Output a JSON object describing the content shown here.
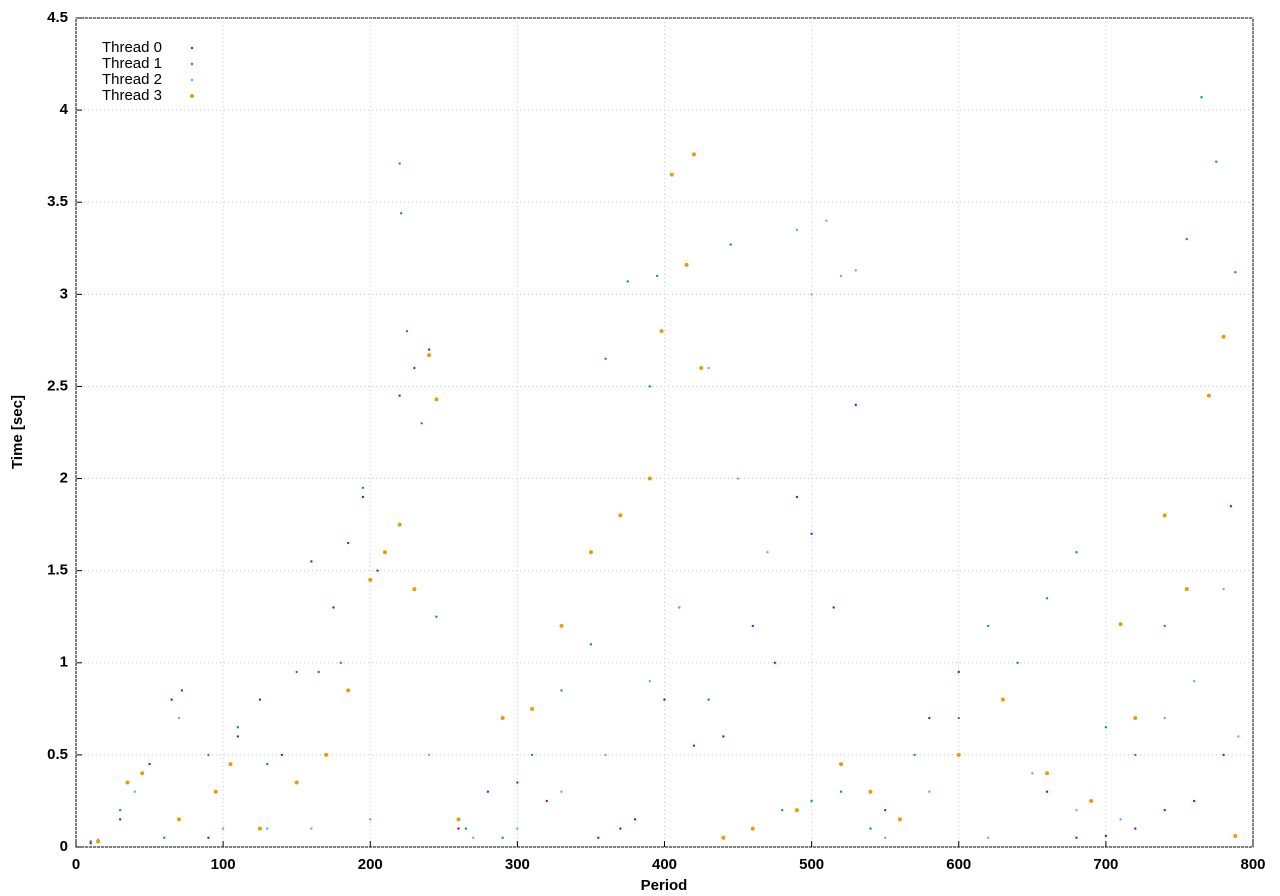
{
  "chart_data": {
    "type": "scatter",
    "x_label": "Period",
    "y_label": "Time [sec]",
    "xlim": [
      0,
      800
    ],
    "ylim": [
      0,
      4.5
    ],
    "xticks": [
      0,
      100,
      200,
      300,
      400,
      500,
      600,
      700,
      800
    ],
    "yticks": [
      0,
      0.5,
      1,
      1.5,
      2,
      2.5,
      3,
      3.5,
      4,
      4.5
    ],
    "grid": true,
    "legend": "upper left",
    "series": [
      {
        "name": "Thread 0",
        "color": "#9400d3",
        "x": [
          10,
          30,
          50,
          65,
          72,
          90,
          110,
          125,
          140,
          160,
          175,
          185,
          195,
          205,
          220,
          230,
          240,
          260,
          280,
          300,
          320,
          355,
          370,
          380,
          400,
          420,
          440,
          460,
          475,
          490,
          500,
          515,
          530,
          550,
          580,
          600,
          630,
          660,
          680,
          700,
          720,
          740,
          760,
          780,
          785
        ],
        "values": [
          0.02,
          0.15,
          0.45,
          0.8,
          0.85,
          0.05,
          0.6,
          0.8,
          0.5,
          1.55,
          1.3,
          1.65,
          1.9,
          1.5,
          2.45,
          2.6,
          2.7,
          0.1,
          0.3,
          0.35,
          0.25,
          0.05,
          0.1,
          0.15,
          0.8,
          0.55,
          0.6,
          1.2,
          1.0,
          1.9,
          1.7,
          1.3,
          2.4,
          0.2,
          0.7,
          0.95,
          0.8,
          0.3,
          0.05,
          0.06,
          0.1,
          0.2,
          0.25,
          0.5,
          1.85
        ]
      },
      {
        "name": "Thread 1",
        "color": "#009e73",
        "x": [
          10,
          30,
          60,
          90,
          110,
          130,
          150,
          165,
          180,
          195,
          210,
          220,
          221,
          225,
          235,
          245,
          265,
          290,
          310,
          330,
          350,
          360,
          375,
          390,
          395,
          410,
          430,
          445,
          460,
          480,
          500,
          520,
          540,
          570,
          600,
          620,
          640,
          660,
          680,
          700,
          720,
          740,
          755,
          765,
          775,
          788
        ],
        "values": [
          0.03,
          0.2,
          0.05,
          0.5,
          0.65,
          0.45,
          0.95,
          0.95,
          1.0,
          1.95,
          1.6,
          3.71,
          3.44,
          2.8,
          2.3,
          1.25,
          0.1,
          0.05,
          0.5,
          0.85,
          1.1,
          2.65,
          3.07,
          2.5,
          3.1,
          1.3,
          0.8,
          3.27,
          0.1,
          0.2,
          0.25,
          0.3,
          0.1,
          0.5,
          0.7,
          1.2,
          1.0,
          1.35,
          1.6,
          0.65,
          0.5,
          1.2,
          3.3,
          4.07,
          3.72,
          3.12
        ]
      },
      {
        "name": "Thread 2",
        "color": "#56b4e9",
        "x": [
          15,
          40,
          70,
          100,
          130,
          160,
          200,
          240,
          270,
          300,
          330,
          360,
          390,
          410,
          430,
          450,
          470,
          490,
          500,
          510,
          520,
          530,
          550,
          580,
          620,
          650,
          680,
          710,
          740,
          760,
          780,
          790
        ],
        "values": [
          0.04,
          0.3,
          0.7,
          0.1,
          0.1,
          0.1,
          0.15,
          0.5,
          0.05,
          0.1,
          0.3,
          0.5,
          0.9,
          1.3,
          2.6,
          2.0,
          1.6,
          3.35,
          3.0,
          3.4,
          3.1,
          3.13,
          0.05,
          0.3,
          0.05,
          0.4,
          0.2,
          0.15,
          0.7,
          0.9,
          1.4,
          0.6
        ]
      },
      {
        "name": "Thread 3",
        "color": "#e69f00",
        "x": [
          15,
          35,
          45,
          70,
          95,
          105,
          125,
          150,
          170,
          185,
          200,
          210,
          220,
          230,
          240,
          245,
          260,
          290,
          310,
          330,
          350,
          370,
          390,
          398,
          405,
          415,
          420,
          425,
          440,
          460,
          490,
          520,
          540,
          560,
          600,
          630,
          660,
          690,
          710,
          720,
          740,
          755,
          770,
          780,
          788
        ],
        "values": [
          0.03,
          0.35,
          0.4,
          0.15,
          0.3,
          0.45,
          0.1,
          0.35,
          0.5,
          0.85,
          1.45,
          1.6,
          1.75,
          1.4,
          2.67,
          2.43,
          0.15,
          0.7,
          0.75,
          1.2,
          1.6,
          1.8,
          2.0,
          2.8,
          3.65,
          3.16,
          3.76,
          2.6,
          0.05,
          0.1,
          0.2,
          0.45,
          0.3,
          0.15,
          0.5,
          0.8,
          0.4,
          0.25,
          1.21,
          0.7,
          1.8,
          1.4,
          2.45,
          2.77,
          0.06
        ]
      }
    ]
  }
}
